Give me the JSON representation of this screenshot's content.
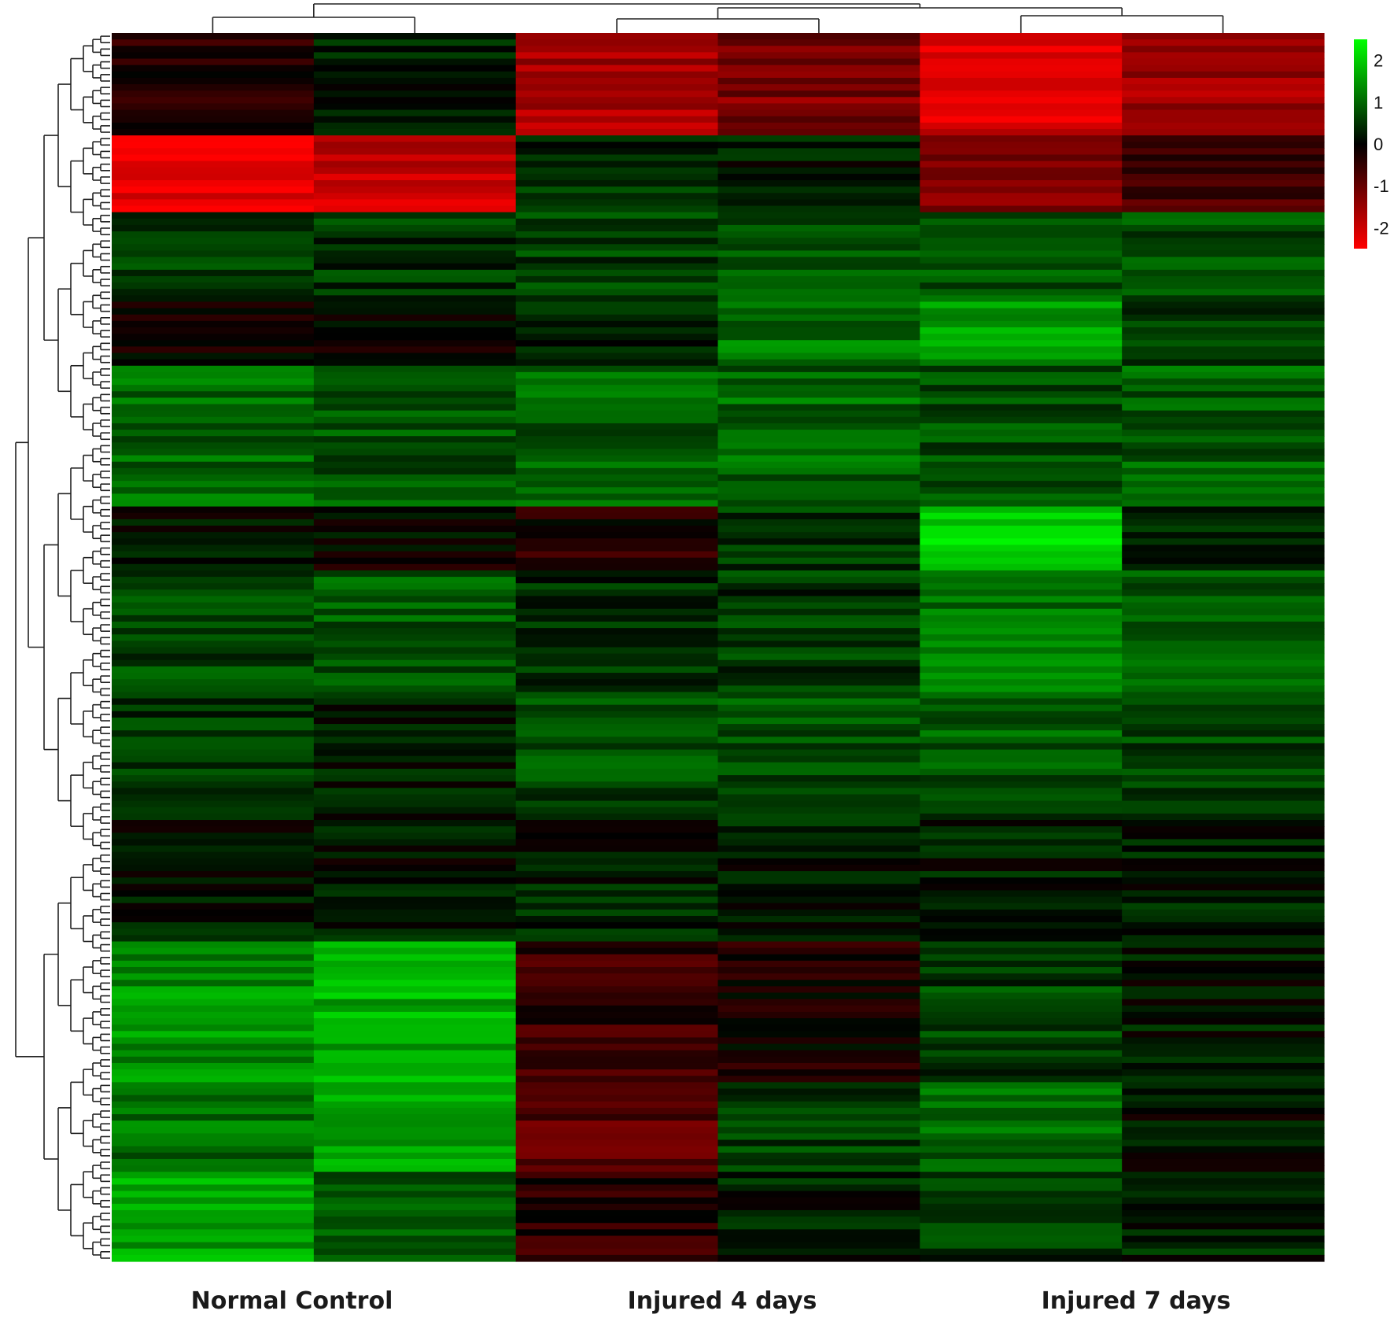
{
  "chart_data": {
    "type": "heatmap",
    "title": "",
    "xlabel": "",
    "ylabel": "",
    "groups": [
      "Normal Control",
      "Injured 4 days",
      "Injured 7 days"
    ],
    "columns_per_group": 2,
    "color_scale": {
      "ticks": [
        "2",
        "1",
        "0",
        "-1",
        "-2"
      ],
      "values": [
        2,
        1,
        0,
        -1,
        -2
      ],
      "range": [
        -2.5,
        2.5
      ],
      "colors": {
        "high": "#00ff00",
        "mid": "#000000",
        "low": "#ff0000"
      }
    },
    "row_blocks": [
      {
        "rows": 16,
        "values": [
          -0.4,
          0.3,
          -1.6,
          -1.2,
          -2.2,
          -1.5
        ]
      },
      {
        "rows": 12,
        "values": [
          -2.2,
          -1.9,
          0.4,
          0.3,
          -1.2,
          -0.7
        ]
      },
      {
        "rows": 14,
        "values": [
          0.5,
          0.5,
          0.6,
          0.7,
          0.9,
          0.7
        ]
      },
      {
        "rows": 10,
        "values": [
          -0.2,
          -0.1,
          0.4,
          1.1,
          1.6,
          0.6
        ]
      },
      {
        "rows": 22,
        "values": [
          1.0,
          0.8,
          0.9,
          1.0,
          0.8,
          0.9
        ]
      },
      {
        "rows": 10,
        "values": [
          0.1,
          0.0,
          -0.3,
          0.6,
          2.0,
          0.5
        ]
      },
      {
        "rows": 20,
        "values": [
          0.7,
          0.9,
          0.4,
          0.5,
          1.1,
          0.8
        ]
      },
      {
        "rows": 18,
        "values": [
          0.5,
          0.3,
          0.7,
          0.8,
          0.9,
          0.6
        ]
      },
      {
        "rows": 20,
        "values": [
          0.2,
          0.2,
          0.3,
          0.3,
          0.3,
          0.3
        ]
      },
      {
        "rows": 22,
        "values": [
          1.4,
          1.7,
          -0.5,
          -0.2,
          0.6,
          0.2
        ]
      },
      {
        "rows": 14,
        "values": [
          1.1,
          1.5,
          -0.8,
          0.6,
          1.0,
          0.2
        ]
      },
      {
        "rows": 14,
        "values": [
          1.6,
          0.8,
          -0.4,
          0.3,
          0.5,
          0.3
        ]
      }
    ]
  }
}
